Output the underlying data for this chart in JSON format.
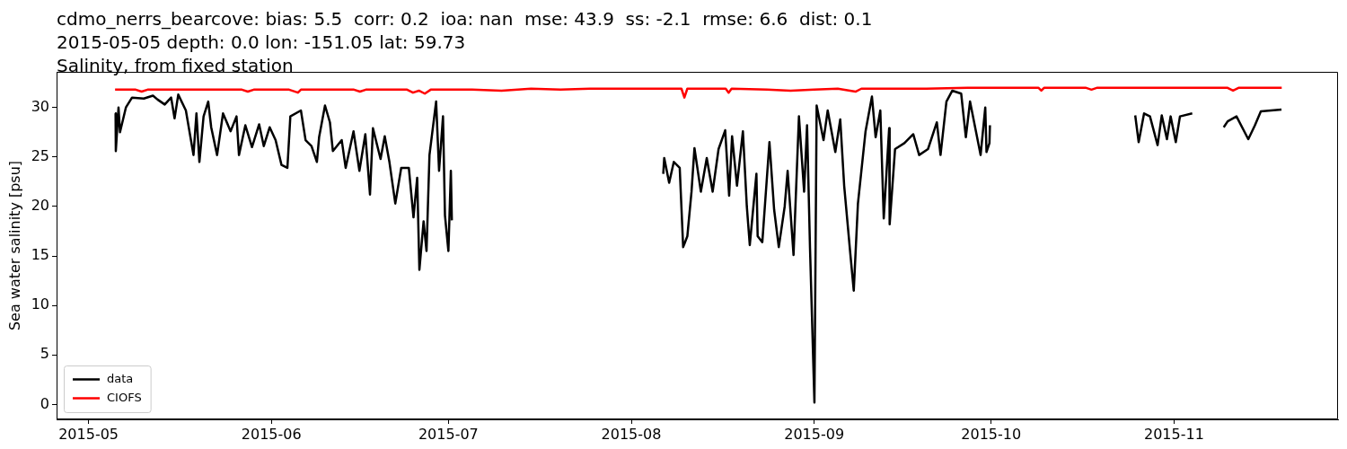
{
  "chart_data": {
    "type": "line",
    "title": "cdmo_nerrs_bearcove: bias: 5.5  corr: 0.2  ioa: nan  mse: 43.9  ss: -2.1  rmse: 6.6  dist: 0.1\n2015-05-05 depth: 0.0 lon: -151.05 lat: 59.73\nSalinity, from fixed station",
    "ylabel": "Sea water salinity [psu]",
    "xlim": [
      "2015-04-25T14:00",
      "2015-11-28T19:00"
    ],
    "xticks": [
      "2015-05",
      "2015-06",
      "2015-07",
      "2015-08",
      "2015-09",
      "2015-10",
      "2015-11"
    ],
    "ylim": [
      -1.5,
      33.6
    ],
    "yticks": [
      0,
      5,
      10,
      15,
      20,
      25,
      30
    ],
    "grid": false,
    "legend": "bottom left",
    "marker": "none",
    "series": [
      {
        "name": "data",
        "color": "#000000",
        "x": [
          "2015-05-05T14:00",
          "2015-05-05T15:00",
          "2015-05-06T02:00",
          "2015-05-06T08:00",
          "2015-05-07T08:00",
          "2015-05-08T09:00",
          "2015-05-10T09:00",
          "2015-05-11T22:00",
          "2015-05-12T17:00",
          "2015-05-13T22:00",
          "2015-05-15T00:00",
          "2015-05-15T14:00",
          "2015-05-16T05:00",
          "2015-05-17T12:00",
          "2015-05-18T19:00",
          "2015-05-19T07:00",
          "2015-05-19T19:00",
          "2015-05-20T12:00",
          "2015-05-21T07:00",
          "2015-05-21T19:00",
          "2015-05-22T19:00",
          "2015-05-23T19:00",
          "2015-05-25T02:00",
          "2015-05-26T02:00",
          "2015-05-26T12:00",
          "2015-05-27T14:00",
          "2015-05-28T17:00",
          "2015-05-29T22:00",
          "2015-05-30T17:00",
          "2015-05-31T17:00",
          "2015-06-01T17:00",
          "2015-06-02T17:00",
          "2015-06-03T17:00",
          "2015-06-04T05:00",
          "2015-06-06T00:00",
          "2015-06-06T19:00",
          "2015-06-07T19:00",
          "2015-06-08T17:00",
          "2015-06-09T02:00",
          "2015-06-10T02:00",
          "2015-06-10T22:00",
          "2015-06-11T10:00",
          "2015-06-12T22:00",
          "2015-06-13T14:00",
          "2015-06-14T22:00",
          "2015-06-15T22:00",
          "2015-06-16T22:00",
          "2015-06-17T17:00",
          "2015-06-18T05:00",
          "2015-06-19T12:00",
          "2015-06-20T05:00",
          "2015-06-21T00:00",
          "2015-06-22T00:00",
          "2015-06-23T00:00",
          "2015-06-24T07:00",
          "2015-06-25T02:00",
          "2015-06-25T17:00",
          "2015-06-26T02:00",
          "2015-06-26T19:00",
          "2015-06-27T07:00",
          "2015-06-27T19:00",
          "2015-06-28T22:00",
          "2015-06-29T10:00",
          "2015-06-30T02:00",
          "2015-06-30T10:00",
          "2015-07-01T00:00",
          "2015-07-01T10:00",
          "2015-07-01T14:00",
          "2015-07-15T00:00",
          "2015-08-06T10:00",
          "2015-08-06T14:00",
          "2015-08-07T10:00",
          "2015-08-08T05:00",
          "2015-08-09T05:00",
          "2015-08-09T19:00",
          "2015-08-10T12:00",
          "2015-08-11T05:00",
          "2015-08-11T17:00",
          "2015-08-12T19:00",
          "2015-08-13T19:00",
          "2015-08-14T19:00",
          "2015-08-15T19:00",
          "2015-08-16T22:00",
          "2015-08-17T14:00",
          "2015-08-18T02:00",
          "2015-08-18T22:00",
          "2015-08-19T22:00",
          "2015-08-20T14:00",
          "2015-08-21T02:00",
          "2015-08-22T05:00",
          "2015-08-22T10:00",
          "2015-08-23T05:00",
          "2015-08-24T10:00",
          "2015-08-25T05:00",
          "2015-08-26T00:00",
          "2015-08-27T00:00",
          "2015-08-27T12:00",
          "2015-08-28T12:00",
          "2015-08-29T10:00",
          "2015-08-30T07:00",
          "2015-08-30T19:00",
          "2015-08-31T07:00",
          "2015-09-01T01:00",
          "2015-09-01T10:00",
          "2015-09-02T14:00",
          "2015-09-03T07:00",
          "2015-09-04T14:00",
          "2015-09-05T10:00",
          "2015-09-06T02:00",
          "2015-09-07T02:00",
          "2015-09-07T17:00",
          "2015-09-08T10:00",
          "2015-09-09T17:00",
          "2015-09-10T19:00",
          "2015-09-11T10:00",
          "2015-09-12T05:00",
          "2015-09-12T19:00",
          "2015-09-13T17:00",
          "2015-09-13T19:00",
          "2015-09-14T17:00",
          "2015-09-16T07:00",
          "2015-09-17T19:00",
          "2015-09-18T19:00",
          "2015-09-20T07:00",
          "2015-09-21T19:00",
          "2015-09-22T10:00",
          "2015-09-23T10:00",
          "2015-09-24T10:00",
          "2015-09-25T22:00",
          "2015-09-26T17:00",
          "2015-09-27T10:00",
          "2015-09-28T10:00",
          "2015-09-29T05:00",
          "2015-09-30T00:00",
          "2015-09-30T05:00",
          "2015-09-30T17:00",
          "2015-09-30T19:00",
          "2015-10-15T00:00",
          "2015-10-25T10:00",
          "2015-10-26T00:00",
          "2015-10-26T22:00",
          "2015-10-27T22:00",
          "2015-10-29T05:00",
          "2015-10-29T22:00",
          "2015-10-30T19:00",
          "2015-10-31T10:00",
          "2015-11-01T07:00",
          "2015-11-02T00:00",
          "2015-11-04T02:00",
          "2015-11-07T00:00",
          "2015-11-09T10:00",
          "2015-11-10T02:00",
          "2015-11-11T14:00",
          "2015-11-13T14:00",
          "2015-11-14T17:00",
          "2015-11-15T17:00",
          "2015-11-19T05:00"
        ],
        "values": [
          29.4,
          25.6,
          30.0,
          27.5,
          30.0,
          31.0,
          30.9,
          31.2,
          30.8,
          30.3,
          31.0,
          28.9,
          31.3,
          29.7,
          25.2,
          29.4,
          24.5,
          29.1,
          30.6,
          28.0,
          25.2,
          29.4,
          27.6,
          29.1,
          25.2,
          28.2,
          26.0,
          28.3,
          26.1,
          28.0,
          26.7,
          24.2,
          23.9,
          29.1,
          29.7,
          26.7,
          26.1,
          24.5,
          27.0,
          30.2,
          28.5,
          25.6,
          26.7,
          23.9,
          27.6,
          23.6,
          27.3,
          21.2,
          27.9,
          24.8,
          27.1,
          24.5,
          20.3,
          23.9,
          23.9,
          18.9,
          22.9,
          13.6,
          18.5,
          15.5,
          25.2,
          30.6,
          23.6,
          29.1,
          19.1,
          15.5,
          23.6,
          18.6,
          null,
          23.3,
          24.9,
          22.4,
          24.5,
          23.9,
          15.9,
          17.0,
          21.5,
          25.9,
          21.5,
          24.9,
          21.5,
          25.8,
          27.7,
          21.1,
          27.1,
          22.1,
          27.6,
          20.0,
          16.1,
          23.3,
          17.0,
          16.4,
          26.5,
          19.7,
          15.9,
          20.0,
          23.6,
          15.1,
          29.1,
          21.5,
          28.2,
          15.8,
          0.2,
          30.2,
          26.7,
          29.7,
          25.5,
          28.8,
          22.1,
          15.5,
          11.5,
          20.3,
          27.6,
          31.1,
          27.0,
          29.7,
          18.8,
          27.9,
          18.2,
          25.8,
          26.4,
          27.3,
          25.2,
          25.8,
          28.5,
          25.2,
          30.6,
          31.7,
          31.4,
          27.0,
          30.6,
          27.6,
          25.2,
          30.0,
          25.5,
          26.4,
          28.2,
          null,
          29.2,
          26.5,
          29.4,
          29.1,
          26.2,
          29.2,
          26.8,
          29.1,
          26.5,
          29.1,
          29.4,
          null,
          28.0,
          28.6,
          29.1,
          26.8,
          28.2,
          29.6,
          29.8
        ]
      },
      {
        "name": "CIOFS",
        "color": "#ff0000",
        "x": [
          "2015-05-05T12:00",
          "2015-05-09T00:00",
          "2015-05-10T00:00",
          "2015-05-11T00:00",
          "2015-05-20T00:00",
          "2015-05-27T00:00",
          "2015-05-28T00:00",
          "2015-05-29T00:00",
          "2015-06-04T00:00",
          "2015-06-05T12:00",
          "2015-06-06T00:00",
          "2015-06-15T00:00",
          "2015-06-16T00:00",
          "2015-06-17T00:00",
          "2015-06-24T00:00",
          "2015-06-25T00:00",
          "2015-06-26T00:00",
          "2015-06-27T00:00",
          "2015-06-28T00:00",
          "2015-07-05T00:00",
          "2015-07-10T00:00",
          "2015-07-15T00:00",
          "2015-07-20T00:00",
          "2015-07-25T00:00",
          "2015-07-31T00:00",
          "2015-08-09T12:00",
          "2015-08-10T00:00",
          "2015-08-10T12:00",
          "2015-08-17T00:00",
          "2015-08-17T12:00",
          "2015-08-18T00:00",
          "2015-08-24T00:00",
          "2015-08-28T00:00",
          "2015-09-01T00:00",
          "2015-09-05T00:00",
          "2015-09-08T00:00",
          "2015-09-09T00:00",
          "2015-09-20T00:00",
          "2015-09-27T00:00",
          "2015-10-05T00:00",
          "2015-10-09T00:00",
          "2015-10-09T12:00",
          "2015-10-10T00:00",
          "2015-10-17T00:00",
          "2015-10-18T00:00",
          "2015-10-19T00:00",
          "2015-11-01T00:00",
          "2015-11-10T00:00",
          "2015-11-11T00:00",
          "2015-11-12T00:00",
          "2015-11-19T06:00"
        ],
        "values": [
          31.8,
          31.8,
          31.6,
          31.8,
          31.8,
          31.8,
          31.6,
          31.8,
          31.8,
          31.5,
          31.8,
          31.8,
          31.6,
          31.8,
          31.8,
          31.5,
          31.7,
          31.4,
          31.8,
          31.8,
          31.7,
          31.9,
          31.8,
          31.9,
          31.9,
          31.9,
          31.0,
          31.9,
          31.9,
          31.5,
          31.9,
          31.8,
          31.7,
          31.8,
          31.9,
          31.6,
          31.9,
          31.9,
          32.0,
          32.0,
          32.0,
          31.7,
          32.0,
          32.0,
          31.8,
          32.0,
          32.0,
          32.0,
          31.7,
          32.0,
          32.0
        ]
      }
    ]
  }
}
